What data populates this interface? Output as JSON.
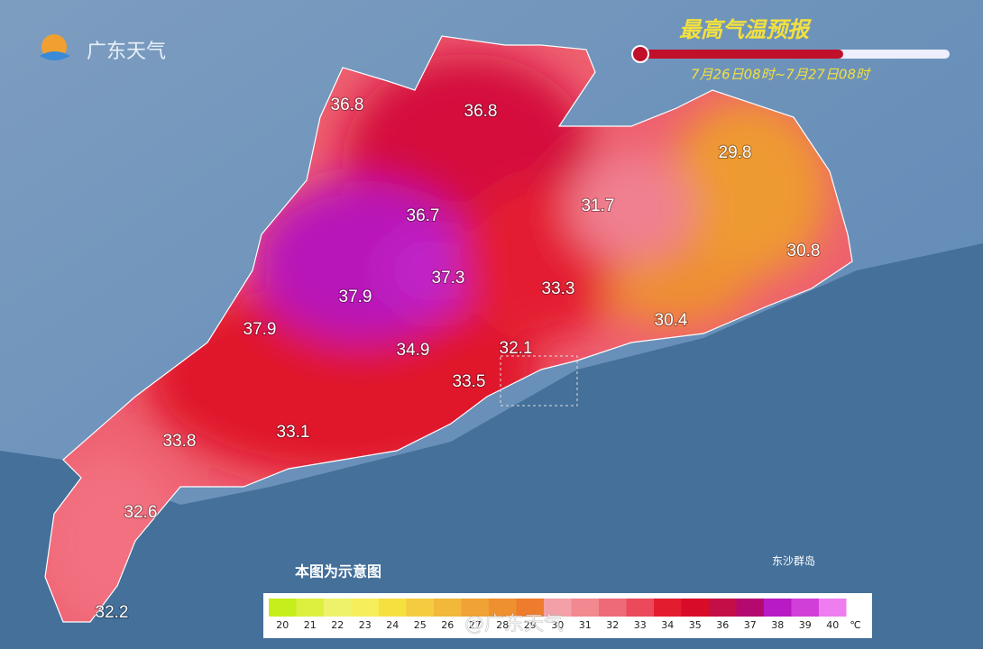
{
  "logo": "广东天气",
  "title": "最高气温预报",
  "time_range": "7月26日08时~7月27日08时",
  "labels": [
    {
      "value": 36.8
    },
    {
      "value": 36.8
    },
    {
      "value": 36.7
    },
    {
      "value": 37.3
    },
    {
      "value": 37.9
    },
    {
      "value": 37.9
    },
    {
      "value": 34.9
    },
    {
      "value": 33.3
    },
    {
      "value": 31.7
    },
    {
      "value": 29.8
    },
    {
      "value": 30.8
    },
    {
      "value": 30.4
    },
    {
      "value": 32.1
    },
    {
      "value": 33.5
    },
    {
      "value": 33.8
    },
    {
      "value": 33.1
    },
    {
      "value": 32.6
    },
    {
      "value": 32.2
    }
  ],
  "note": "本图为示意图",
  "island": "东沙群岛",
  "watermark": "@广东天气",
  "legend": {
    "unit": "℃",
    "items": [
      {
        "value": 20,
        "color": "#c6ee1c"
      },
      {
        "value": 21,
        "color": "#dcf040"
      },
      {
        "value": 22,
        "color": "#eef26a"
      },
      {
        "value": 23,
        "color": "#f6ee5a"
      },
      {
        "value": 24,
        "color": "#f6e040"
      },
      {
        "value": 25,
        "color": "#f4cc40"
      },
      {
        "value": 26,
        "color": "#f2b83a"
      },
      {
        "value": 27,
        "color": "#f0a234"
      },
      {
        "value": 28,
        "color": "#ee9030"
      },
      {
        "value": 29,
        "color": "#ee7c2c"
      },
      {
        "value": 30,
        "color": "#f4a0a8"
      },
      {
        "value": 31,
        "color": "#f28890"
      },
      {
        "value": 32,
        "color": "#ee6a78"
      },
      {
        "value": 33,
        "color": "#ea4a5c"
      },
      {
        "value": 34,
        "color": "#e41c30"
      },
      {
        "value": 35,
        "color": "#d80c28"
      },
      {
        "value": 36,
        "color": "#c40e48"
      },
      {
        "value": 37,
        "color": "#b40a70"
      },
      {
        "value": 38,
        "color": "#b81ac4"
      },
      {
        "value": 39,
        "color": "#d040d8"
      },
      {
        "value": 40,
        "color": "#ee7ef0"
      }
    ]
  }
}
